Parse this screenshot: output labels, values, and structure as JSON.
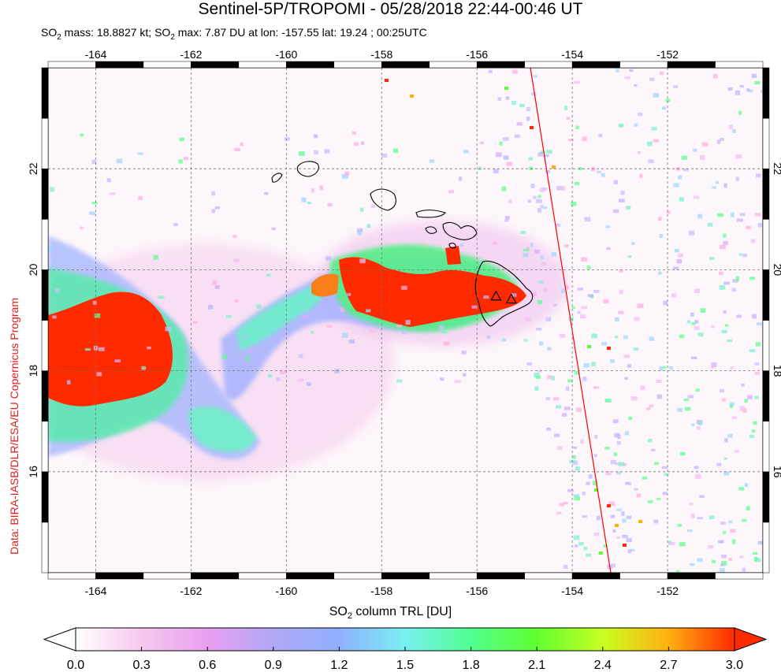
{
  "title": "Sentinel-5P/TROPOMI - 05/28/2018 22:44-00:46 UT",
  "subtitle": {
    "prefix": "SO",
    "sub": "2",
    "rest1": " mass: 18.8827 kt; SO",
    "sub2": "2",
    "rest2": " max: 7.87 DU at lon: -157.55 lat: 19.24 ; 00:25UTC"
  },
  "side_credit": "Data: BIRA-IASB/DLR/ESA/EU Copernicus Program",
  "colorbar": {
    "title_prefix": "SO",
    "title_sub": "2",
    "title_rest": " column TRL [DU]",
    "min": 0.0,
    "max": 3.0,
    "ticks": [
      "0.0",
      "0.3",
      "0.6",
      "0.9",
      "1.2",
      "1.5",
      "1.8",
      "2.1",
      "2.4",
      "2.7",
      "3.0"
    ],
    "colors": [
      "#ffffff",
      "#f6c8ee",
      "#e8a0f0",
      "#b0a8f4",
      "#8fb0ff",
      "#78f0f0",
      "#50ff90",
      "#60ff30",
      "#c8ff20",
      "#ffb010",
      "#ff2a00"
    ]
  },
  "map": {
    "lon_range": [
      -165,
      -150
    ],
    "lat_range": [
      14,
      24
    ],
    "lon_ticks": [
      "-164",
      "-162",
      "-160",
      "-158",
      "-156",
      "-154",
      "-152"
    ],
    "lat_ticks": [
      "16",
      "18",
      "20",
      "22"
    ],
    "volcano_markers": [
      {
        "lon": -155.6,
        "lat": 19.48
      },
      {
        "lon": -155.28,
        "lat": 19.42
      }
    ],
    "orbit_edge_color": "#ff0000",
    "plume_color": "#ff2a00"
  }
}
